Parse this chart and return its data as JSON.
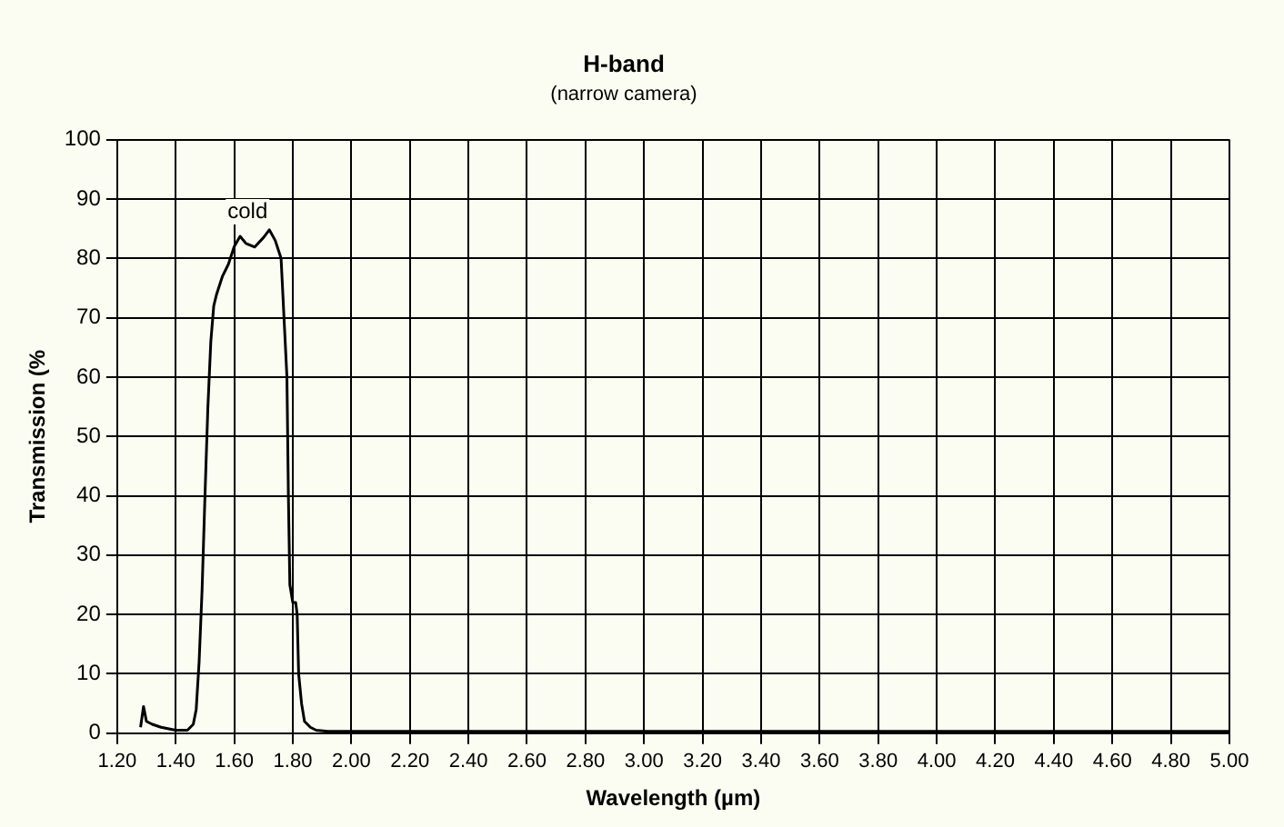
{
  "chart_data": {
    "type": "line",
    "title": "H-band",
    "subtitle": "(narrow camera)",
    "xlabel": "Wavelength (µm)",
    "ylabel": "Transmission (%",
    "series": [
      {
        "color": "#000000",
        "x": [
          1.28,
          1.29,
          1.3,
          1.32,
          1.35,
          1.4,
          1.44,
          1.46,
          1.47,
          1.48,
          1.49,
          1.5,
          1.51,
          1.52,
          1.53,
          1.54,
          1.56,
          1.58,
          1.6,
          1.62,
          1.64,
          1.67,
          1.7,
          1.72,
          1.74,
          1.76,
          1.77,
          1.78,
          1.785,
          1.79,
          1.8,
          1.81,
          1.815,
          1.82,
          1.83,
          1.84,
          1.86,
          1.88,
          1.92,
          2.0,
          2.4,
          2.8,
          3.2,
          3.6,
          4.0,
          4.4,
          4.8,
          5.0
        ],
        "values": [
          1,
          4.5,
          2,
          1.5,
          1,
          0.5,
          0.5,
          1.5,
          4,
          12,
          24,
          40,
          55,
          66,
          72,
          74,
          77,
          79,
          82,
          83.7,
          82.5,
          81.9,
          83.5,
          84.8,
          83,
          80,
          70,
          60,
          40,
          25,
          22,
          22,
          20,
          10,
          5,
          2,
          1,
          0.5,
          0.3,
          0.3,
          0.3,
          0.3,
          0.3,
          0.3,
          0.3,
          0.3,
          0.3,
          0.3
        ]
      }
    ],
    "xlim": [
      1.2,
      5.0
    ],
    "xticks": [
      {
        "value": 1.2,
        "label": "1.20"
      },
      {
        "value": 1.4,
        "label": "1.40"
      },
      {
        "value": 1.6,
        "label": "1.60"
      },
      {
        "value": 1.8,
        "label": "1.80"
      },
      {
        "value": 2.0,
        "label": "2.00"
      },
      {
        "value": 2.2,
        "label": "2.20"
      },
      {
        "value": 2.4,
        "label": "2.40"
      },
      {
        "value": 2.6,
        "label": "2.60"
      },
      {
        "value": 2.8,
        "label": "2.80"
      },
      {
        "value": 3.0,
        "label": "3.00"
      },
      {
        "value": 3.2,
        "label": "3.20"
      },
      {
        "value": 3.4,
        "label": "3.40"
      },
      {
        "value": 3.6,
        "label": "3.60"
      },
      {
        "value": 3.8,
        "label": "3.80"
      },
      {
        "value": 4.0,
        "label": "4.00"
      },
      {
        "value": 4.2,
        "label": "4.20"
      },
      {
        "value": 4.4,
        "label": "4.40"
      },
      {
        "value": 4.6,
        "label": "4.60"
      },
      {
        "value": 4.8,
        "label": "4.80"
      },
      {
        "value": 5.0,
        "label": "5.00"
      }
    ],
    "ylim": [
      0,
      100
    ],
    "yticks": [
      0,
      10,
      20,
      30,
      40,
      50,
      60,
      70,
      80,
      90,
      100
    ],
    "grid": true,
    "legend": false,
    "marker": "none",
    "line_style": "solid",
    "annotations": [
      "cold"
    ]
  }
}
